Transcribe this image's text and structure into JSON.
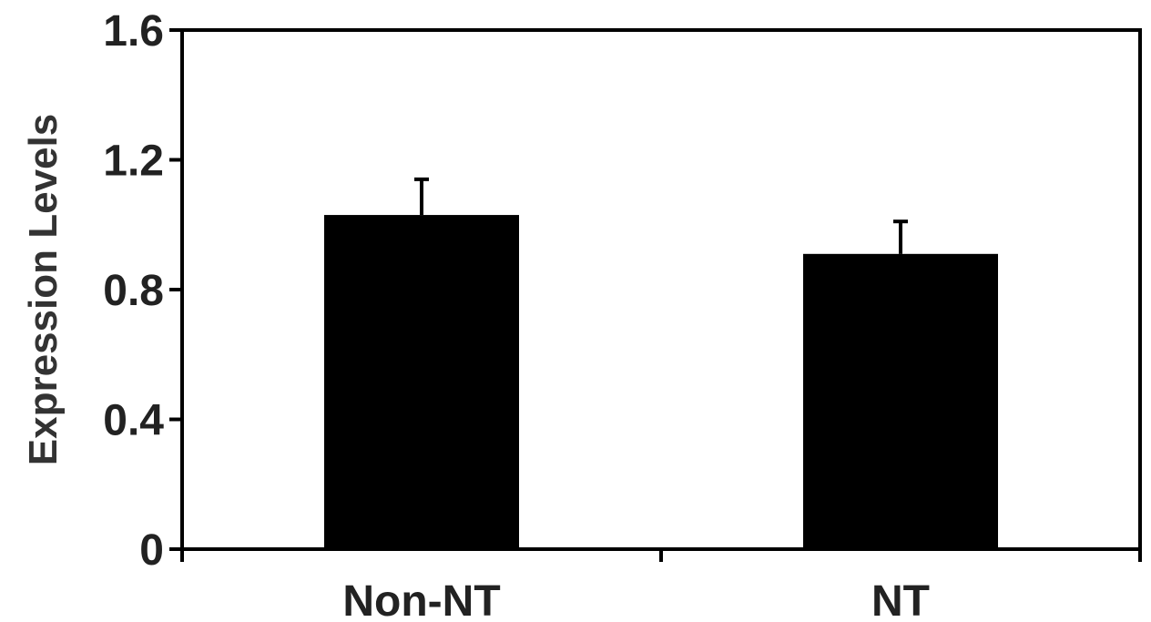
{
  "chart_data": {
    "type": "bar",
    "title": "",
    "xlabel": "",
    "ylabel": "Expression Levels",
    "categories": [
      "Non-NT",
      "NT"
    ],
    "values": [
      1.03,
      0.91
    ],
    "errors": [
      0.11,
      0.1
    ],
    "ylim": [
      0,
      1.6
    ],
    "yticks": [
      0,
      0.4,
      0.8,
      1.2,
      1.6
    ],
    "ytick_labels": [
      "0",
      "0.4",
      "0.8",
      "1.2",
      "1.6"
    ],
    "grid": false,
    "bar_color": "#000000",
    "axis_color": "#000000"
  }
}
